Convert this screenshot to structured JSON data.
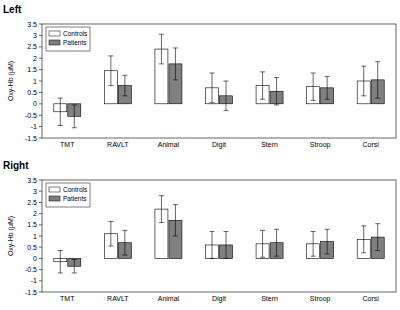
{
  "chart_data": [
    {
      "type": "bar",
      "title": "Left",
      "y_label": "Oxy-Hb (μM)",
      "categories": [
        "TMT",
        "RAVLT",
        "Animal",
        "Digit",
        "Stern",
        "Stroop",
        "Corsi"
      ],
      "series": [
        {
          "name": "Controls",
          "color": "#ffffff",
          "values": [
            -0.35,
            1.45,
            2.4,
            0.7,
            0.8,
            0.75,
            1.0
          ],
          "errors": [
            0.6,
            0.65,
            0.65,
            0.65,
            0.6,
            0.6,
            0.65
          ]
        },
        {
          "name": "Patients",
          "color": "#808080",
          "values": [
            -0.55,
            0.8,
            1.75,
            0.35,
            0.55,
            0.7,
            1.05
          ],
          "errors": [
            0.5,
            0.45,
            0.7,
            0.65,
            0.6,
            0.5,
            0.8
          ]
        }
      ],
      "ylim": [
        -1.5,
        3.5
      ],
      "yticks": [
        -1.5,
        -1,
        -0.5,
        0,
        0.5,
        1,
        1.5,
        2,
        2.5,
        3,
        3.5
      ],
      "legend": "upper left"
    },
    {
      "type": "bar",
      "title": "Right",
      "y_label": "Oxy-Hb (μM)",
      "categories": [
        "TMT",
        "RAVLT",
        "Animal",
        "Digit",
        "Stern",
        "Stroop",
        "Corsi"
      ],
      "series": [
        {
          "name": "Controls",
          "color": "#ffffff",
          "values": [
            -0.15,
            1.1,
            2.2,
            0.6,
            0.65,
            0.65,
            0.85
          ],
          "errors": [
            0.5,
            0.55,
            0.6,
            0.6,
            0.6,
            0.55,
            0.6
          ]
        },
        {
          "name": "Patients",
          "color": "#808080",
          "values": [
            -0.35,
            0.7,
            1.7,
            0.6,
            0.7,
            0.75,
            0.95
          ],
          "errors": [
            0.3,
            0.55,
            0.7,
            0.6,
            0.6,
            0.55,
            0.6
          ]
        }
      ],
      "ylim": [
        -1.5,
        3.5
      ],
      "yticks": [
        -1.5,
        -1,
        -0.5,
        0,
        0.5,
        1,
        1.5,
        2,
        2.5,
        3,
        3.5
      ],
      "legend": "upper left"
    }
  ]
}
